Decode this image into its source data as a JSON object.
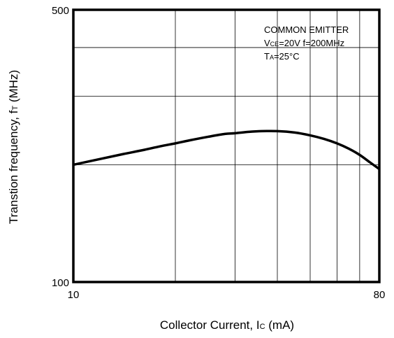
{
  "chart_data": {
    "type": "line",
    "x_scale": "log",
    "y_scale": "log",
    "xlim": [
      10,
      80
    ],
    "ylim": [
      100,
      500
    ],
    "grid": true,
    "x_tick_labels": [
      {
        "value": 10,
        "label": "10"
      },
      {
        "value": 80,
        "label": "80"
      }
    ],
    "y_tick_labels": [
      {
        "value": 500,
        "label": "500"
      },
      {
        "value": 100,
        "label": "100"
      }
    ],
    "x_grid_values": [
      20,
      30,
      40,
      50,
      60,
      70
    ],
    "y_grid_values": [
      200,
      300,
      400
    ],
    "xlabel": {
      "main": "Collector Current, I",
      "sub": "C",
      "unit": " (mA)"
    },
    "ylabel": {
      "main": "Transtion frequency, f",
      "sub": "T",
      "unit": " (MHz)"
    },
    "annotation": {
      "line1": "COMMON EMITTER",
      "line2_a": "V",
      "line2_sub": "CE",
      "line2_b": "=20V  f=200MHz",
      "line3_a": "T",
      "line3_sub": "A",
      "line3_b": "=25°C"
    },
    "series": [
      {
        "x": [
          10,
          12,
          14,
          16,
          18,
          20,
          22,
          25,
          28,
          30,
          33,
          36,
          40,
          45,
          50,
          55,
          60,
          65,
          70,
          75,
          80
        ],
        "y": [
          200,
          207,
          213,
          218,
          223,
          227,
          231,
          236,
          240,
          241,
          243,
          244,
          244,
          242,
          238,
          233,
          227,
          220,
          212,
          203,
          195
        ]
      }
    ]
  }
}
